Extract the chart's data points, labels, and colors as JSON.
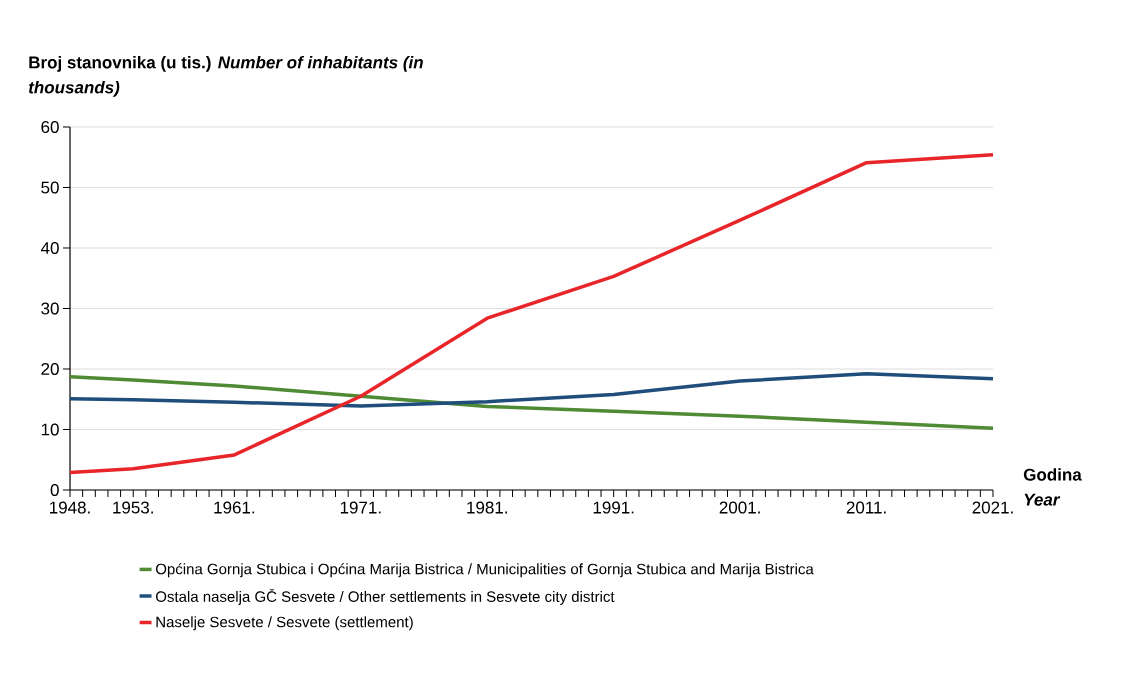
{
  "chart_data": {
    "type": "line",
    "ylabel": "Broj stanovnika (u tis.) *Number of inhabitants (in thousands)*",
    "xlabel": "Godina *Year*",
    "x": [
      1948,
      1953,
      1961,
      1971,
      1981,
      1991,
      2001,
      2011,
      2021
    ],
    "series": [
      {
        "name": "Općina Gornja Stubica i Općina Marija Bistrica / Municipalities of Gornja Stubica and Marija Bistrica",
        "color": "#4f8a35",
        "values": [
          18.7,
          18.2,
          17.2,
          15.5,
          13.8,
          13.0,
          12.2,
          11.2,
          10.2
        ]
      },
      {
        "name": "Ostala naselja GČ Sesvete / Other settlements in Sesvete city district",
        "color": "#1f4e7c",
        "values": [
          15.1,
          14.9,
          14.5,
          13.9,
          14.6,
          15.8,
          18.0,
          19.2,
          18.4
        ]
      },
      {
        "name": "Naselje Sesvete / Sesvete (settlement)",
        "color": "#e8262a",
        "values": [
          2.9,
          3.5,
          5.8,
          15.5,
          28.4,
          35.3,
          44.6,
          54.1,
          55.4
        ]
      }
    ],
    "xlim": [
      1948,
      2021
    ],
    "ylim": [
      0,
      60
    ],
    "yticks": [
      0,
      10,
      20,
      30,
      40,
      50,
      60
    ],
    "xticks": [
      {
        "value": 1948,
        "label": "1948."
      },
      {
        "value": 1949,
        "label": null
      },
      {
        "value": 1950,
        "label": null
      },
      {
        "value": 1951,
        "label": null
      },
      {
        "value": 1952,
        "label": null
      },
      {
        "value": 1953,
        "label": "1953."
      },
      {
        "value": 1954,
        "label": null
      },
      {
        "value": 1955,
        "label": null
      },
      {
        "value": 1956,
        "label": null
      },
      {
        "value": 1957,
        "label": null
      },
      {
        "value": 1958,
        "label": null
      },
      {
        "value": 1959,
        "label": null
      },
      {
        "value": 1960,
        "label": null
      },
      {
        "value": 1961,
        "label": "1961."
      },
      {
        "value": 1962,
        "label": null
      },
      {
        "value": 1963,
        "label": null
      },
      {
        "value": 1964,
        "label": null
      },
      {
        "value": 1965,
        "label": null
      },
      {
        "value": 1966,
        "label": null
      },
      {
        "value": 1967,
        "label": null
      },
      {
        "value": 1968,
        "label": null
      },
      {
        "value": 1969,
        "label": null
      },
      {
        "value": 1970,
        "label": null
      },
      {
        "value": 1971,
        "label": "1971."
      },
      {
        "value": 1972,
        "label": null
      },
      {
        "value": 1973,
        "label": null
      },
      {
        "value": 1974,
        "label": null
      },
      {
        "value": 1975,
        "label": null
      },
      {
        "value": 1976,
        "label": null
      },
      {
        "value": 1977,
        "label": null
      },
      {
        "value": 1978,
        "label": null
      },
      {
        "value": 1979,
        "label": null
      },
      {
        "value": 1980,
        "label": null
      },
      {
        "value": 1981,
        "label": "1981."
      },
      {
        "value": 1982,
        "label": null
      },
      {
        "value": 1983,
        "label": null
      },
      {
        "value": 1984,
        "label": null
      },
      {
        "value": 1985,
        "label": null
      },
      {
        "value": 1986,
        "label": null
      },
      {
        "value": 1987,
        "label": null
      },
      {
        "value": 1988,
        "label": null
      },
      {
        "value": 1989,
        "label": null
      },
      {
        "value": 1990,
        "label": null
      },
      {
        "value": 1991,
        "label": "1991."
      },
      {
        "value": 1992,
        "label": null
      },
      {
        "value": 1993,
        "label": null
      },
      {
        "value": 1994,
        "label": null
      },
      {
        "value": 1995,
        "label": null
      },
      {
        "value": 1996,
        "label": null
      },
      {
        "value": 1997,
        "label": null
      },
      {
        "value": 1998,
        "label": null
      },
      {
        "value": 1999,
        "label": null
      },
      {
        "value": 2000,
        "label": null
      },
      {
        "value": 2001,
        "label": "2001."
      },
      {
        "value": 2002,
        "label": null
      },
      {
        "value": 2003,
        "label": null
      },
      {
        "value": 2004,
        "label": null
      },
      {
        "value": 2005,
        "label": null
      },
      {
        "value": 2006,
        "label": null
      },
      {
        "value": 2007,
        "label": null
      },
      {
        "value": 2008,
        "label": null
      },
      {
        "value": 2009,
        "label": null
      },
      {
        "value": 2010,
        "label": null
      },
      {
        "value": 2011,
        "label": "2011."
      },
      {
        "value": 2012,
        "label": null
      },
      {
        "value": 2013,
        "label": null
      },
      {
        "value": 2014,
        "label": null
      },
      {
        "value": 2015,
        "label": null
      },
      {
        "value": 2016,
        "label": null
      },
      {
        "value": 2017,
        "label": null
      },
      {
        "value": 2018,
        "label": null
      },
      {
        "value": 2019,
        "label": null
      },
      {
        "value": 2020,
        "label": null
      },
      {
        "value": 2021,
        "label": "2021."
      }
    ],
    "grid": "y",
    "legend": "bottom",
    "marker": "none",
    "line_style": "solid"
  }
}
